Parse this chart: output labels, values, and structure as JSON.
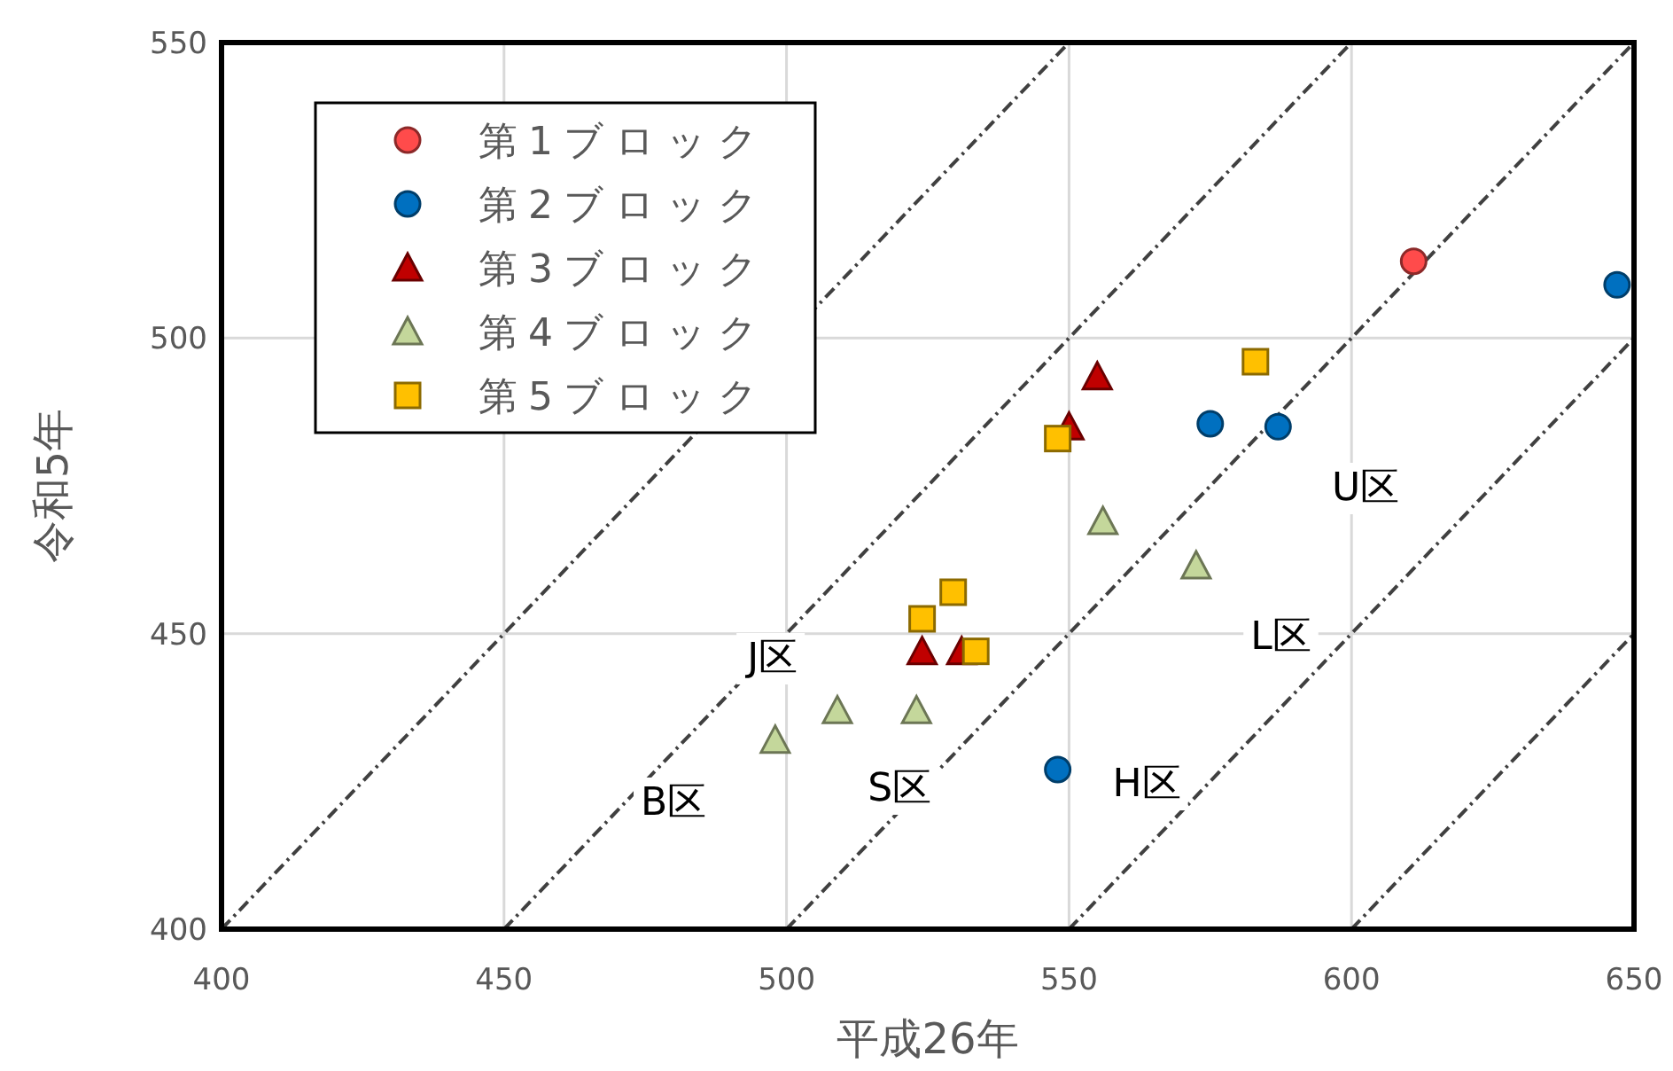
{
  "chart_data": {
    "type": "scatter",
    "xlabel": "平成26年",
    "ylabel": "令和5年",
    "xlim": [
      400,
      650
    ],
    "xticks": [
      400,
      450,
      500,
      550,
      600,
      650
    ],
    "ylim": [
      400,
      550
    ],
    "yticks": [
      400,
      450,
      500,
      550
    ],
    "grid": true,
    "legend": "top left",
    "series": [
      {
        "name": "第1ブロック",
        "color": "#ff4b4b",
        "marker": "circle",
        "x": [
          611
        ],
        "values": [
          513
        ]
      },
      {
        "name": "第2ブロック",
        "color": "#0070c0",
        "marker": "circle",
        "x": [
          647,
          575,
          587,
          548
        ],
        "values": [
          509,
          485.5,
          485,
          427
        ]
      },
      {
        "name": "第3ブロック",
        "color": "#c00000",
        "marker": "triangle",
        "x": [
          555,
          550,
          524,
          531
        ],
        "values": [
          493.5,
          485,
          447,
          447
        ]
      },
      {
        "name": "第4ブロック",
        "color": "#c4d79b",
        "marker": "triangle",
        "x": [
          498,
          509,
          523,
          556,
          572.5
        ],
        "values": [
          432,
          437,
          437,
          469,
          461.5
        ]
      },
      {
        "name": "第5ブロック",
        "color": "#ffc000",
        "marker": "square",
        "x": [
          583,
          548,
          529.5,
          524,
          533.5
        ],
        "values": [
          496,
          483,
          457,
          452.5,
          447
        ]
      },
      {
        "type": "line",
        "color": "#404040",
        "line_style": "dashed",
        "x": [
          400,
          550
        ],
        "values": [
          400,
          550
        ]
      },
      {
        "type": "line",
        "color": "#404040",
        "line_style": "dashed",
        "x": [
          450,
          600
        ],
        "values": [
          400,
          550
        ]
      },
      {
        "type": "line",
        "color": "#404040",
        "line_style": "dashed",
        "x": [
          500,
          650
        ],
        "values": [
          400,
          550
        ]
      },
      {
        "type": "line",
        "color": "#404040",
        "line_style": "dashed",
        "x": [
          550,
          650
        ],
        "values": [
          400,
          500
        ]
      },
      {
        "type": "line",
        "color": "#404040",
        "line_style": "dashed",
        "x": [
          600,
          650
        ],
        "values": [
          400,
          450
        ]
      }
    ],
    "annotations": [
      "U区",
      "L区",
      "J区",
      "B区",
      "S区",
      "H区"
    ]
  }
}
